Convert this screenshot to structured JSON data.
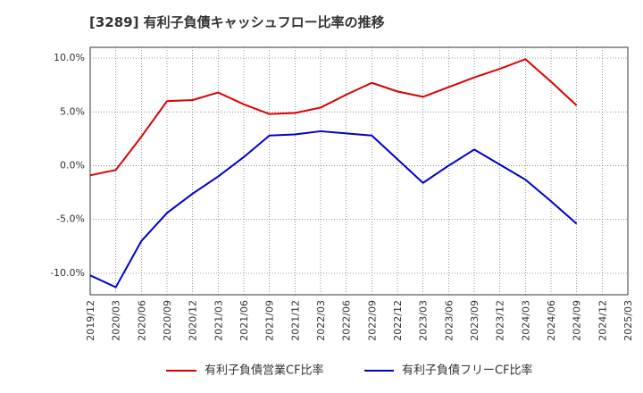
{
  "title": "[3289]  有利子負債キャッシュフロー比率の推移",
  "chart_data": {
    "type": "line",
    "title": "[3289]  有利子負債キャッシュフロー比率の推移",
    "x": [
      "2019/12",
      "2020/03",
      "2020/06",
      "2020/09",
      "2020/12",
      "2021/03",
      "2021/06",
      "2021/09",
      "2021/12",
      "2022/03",
      "2022/06",
      "2022/09",
      "2022/12",
      "2023/03",
      "2023/06",
      "2023/09",
      "2023/12",
      "2024/03",
      "2024/06",
      "2024/09",
      "2024/12",
      "2025/03"
    ],
    "ylim": [
      -12,
      11
    ],
    "yticks": [
      -10,
      -5,
      0,
      5,
      10
    ],
    "ytick_labels": [
      "-10.0%",
      "-5.0%",
      "0.0%",
      "5.0%",
      "10.0%"
    ],
    "grid": true,
    "legend_position": "bottom",
    "series": [
      {
        "name": "有利子負債営業CF比率",
        "color": "#dd0000",
        "values": [
          -0.9,
          -0.4,
          2.7,
          6.0,
          6.1,
          6.8,
          5.7,
          4.8,
          4.9,
          5.4,
          6.6,
          7.7,
          6.9,
          6.4,
          7.3,
          8.2,
          9.0,
          9.9,
          7.8,
          5.6,
          null,
          null
        ]
      },
      {
        "name": "有利子負債フリーCF比率",
        "color": "#0000cc",
        "values": [
          -10.2,
          -11.3,
          -7.0,
          -4.4,
          -2.6,
          -1.0,
          0.8,
          2.8,
          2.9,
          3.2,
          3.0,
          2.8,
          0.6,
          -1.6,
          0.0,
          1.5,
          0.1,
          -1.3,
          -3.3,
          -5.4,
          null,
          null
        ]
      }
    ]
  }
}
